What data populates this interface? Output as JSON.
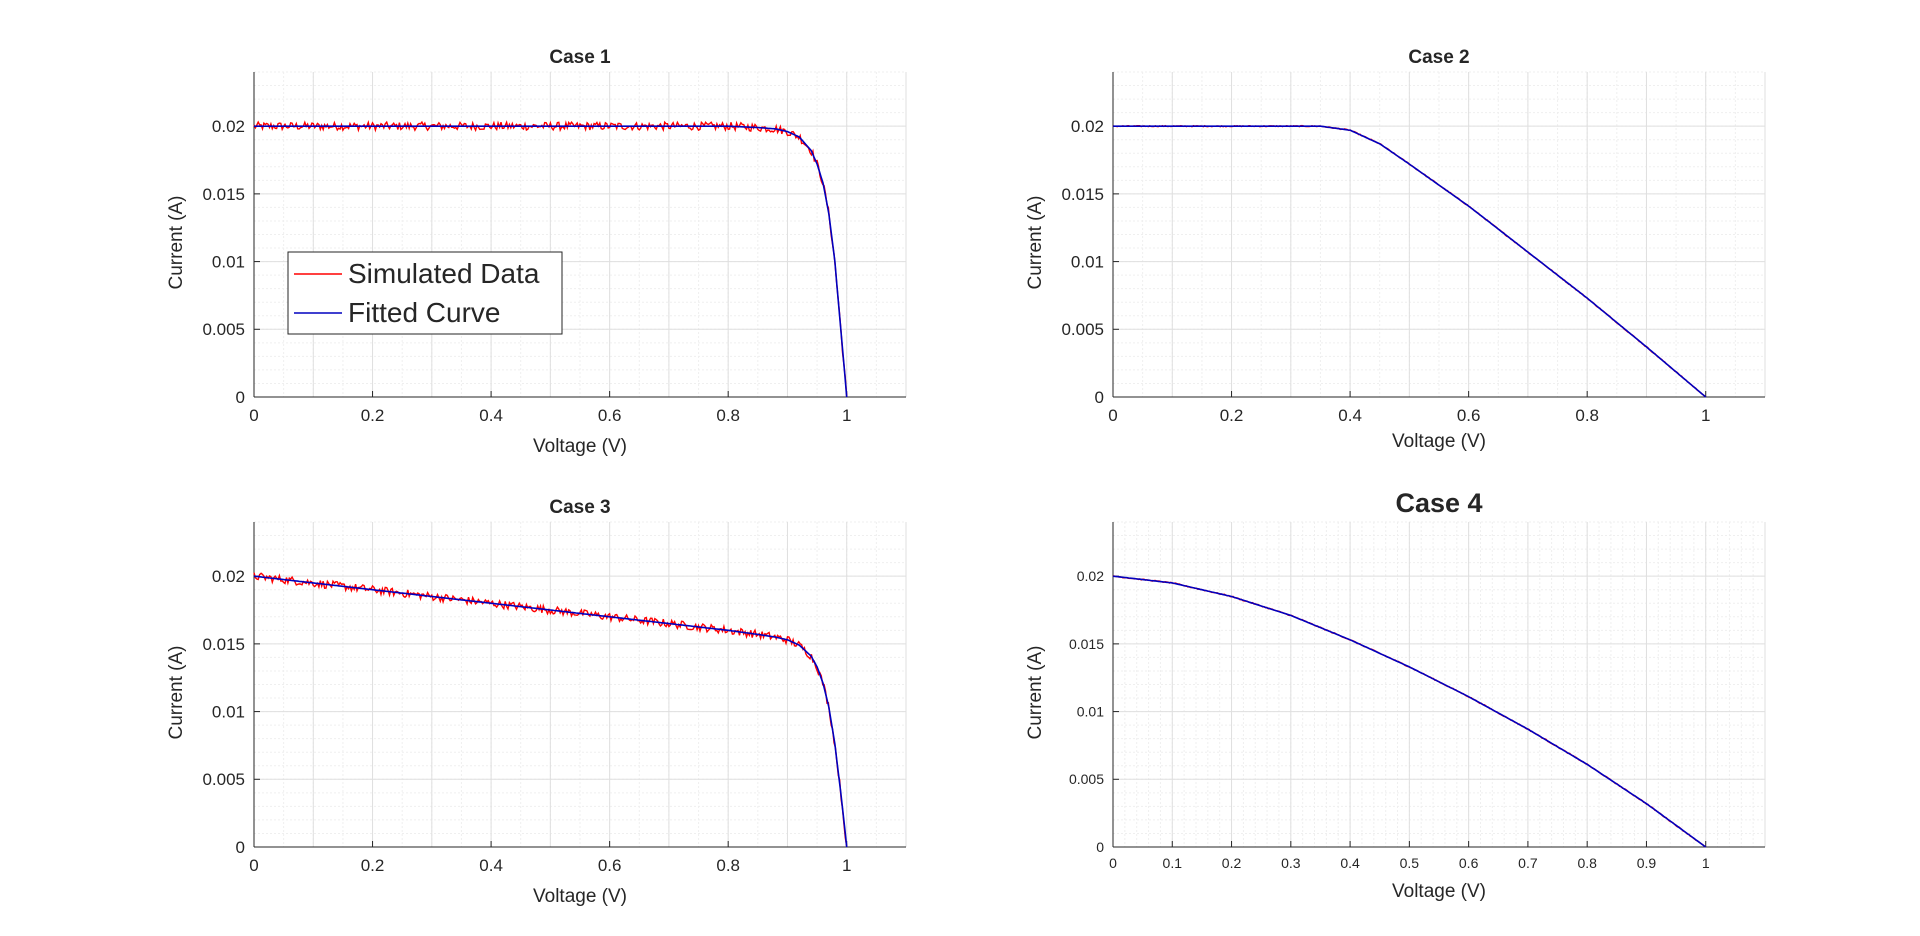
{
  "colors": {
    "simulated": "#ff0000",
    "fitted": "#0000bf",
    "axis": "#262626",
    "grid_major": "#dfdfdf",
    "grid_minor": "#efefef"
  },
  "legend": {
    "simulated_label": "Simulated Data",
    "fitted_label": "Fitted Curve",
    "placement": "inside-left (Case 1 only)"
  },
  "chart_data": [
    {
      "type": "line",
      "title": "Case 1",
      "xlabel": "Voltage (V)",
      "ylabel": "Current (A)",
      "xlim": [
        0,
        1.1
      ],
      "ylim": [
        0,
        0.024
      ],
      "xticks": [
        0,
        0.2,
        0.4,
        0.6,
        0.8,
        1
      ],
      "xtick_labels": [
        "0",
        "0.2",
        "0.4",
        "0.6",
        "0.8",
        "1"
      ],
      "yticks": [
        0,
        0.005,
        0.01,
        0.015,
        0.02
      ],
      "ytick_labels": [
        "0",
        "0.005",
        "0.01",
        "0.015",
        "0.02"
      ],
      "grid": "major and minor",
      "show_legend": true,
      "series": [
        {
          "name": "Simulated Data",
          "noise": 0.0003,
          "x": [
            0,
            0.1,
            0.2,
            0.3,
            0.4,
            0.5,
            0.6,
            0.7,
            0.8,
            0.85,
            0.88,
            0.9,
            0.92,
            0.94,
            0.95,
            0.96,
            0.97,
            0.98,
            0.99,
            1.0
          ],
          "y": [
            0.02,
            0.02,
            0.02,
            0.02,
            0.02,
            0.02,
            0.02,
            0.02,
            0.02,
            0.0199,
            0.0198,
            0.0196,
            0.0192,
            0.0182,
            0.0172,
            0.0158,
            0.0135,
            0.01,
            0.005,
            0
          ]
        },
        {
          "name": "Fitted Curve",
          "x": [
            0,
            0.1,
            0.2,
            0.3,
            0.4,
            0.5,
            0.6,
            0.7,
            0.8,
            0.85,
            0.88,
            0.9,
            0.92,
            0.94,
            0.95,
            0.96,
            0.97,
            0.98,
            0.99,
            1.0
          ],
          "y": [
            0.02,
            0.02,
            0.02,
            0.02,
            0.02,
            0.02,
            0.02,
            0.02,
            0.02,
            0.0199,
            0.0198,
            0.0196,
            0.0192,
            0.0182,
            0.0172,
            0.0158,
            0.0135,
            0.01,
            0.005,
            0
          ]
        }
      ]
    },
    {
      "type": "line",
      "title": "Case 2",
      "xlabel": "Voltage (V)",
      "ylabel": "Current (A)",
      "xlim": [
        0,
        1.1
      ],
      "ylim": [
        0,
        0.024
      ],
      "xticks": [
        0,
        0.2,
        0.4,
        0.6,
        0.8,
        1
      ],
      "xtick_labels": [
        "0",
        "0.2",
        "0.4",
        "0.6",
        "0.8",
        "1"
      ],
      "yticks": [
        0,
        0.005,
        0.01,
        0.015,
        0.02
      ],
      "ytick_labels": [
        "0",
        "0.005",
        "0.01",
        "0.015",
        "0.02"
      ],
      "grid": "major and minor",
      "show_legend": false,
      "series": [
        {
          "name": "Simulated Data",
          "noise": 4e-05,
          "x": [
            0,
            0.1,
            0.2,
            0.3,
            0.35,
            0.4,
            0.45,
            0.5,
            0.6,
            0.7,
            0.8,
            0.9,
            1.0
          ],
          "y": [
            0.02,
            0.02,
            0.02,
            0.02,
            0.02,
            0.0197,
            0.0187,
            0.0172,
            0.0141,
            0.0107,
            0.0073,
            0.0037,
            0
          ]
        },
        {
          "name": "Fitted Curve",
          "x": [
            0,
            0.1,
            0.2,
            0.3,
            0.35,
            0.4,
            0.45,
            0.5,
            0.6,
            0.7,
            0.8,
            0.9,
            1.0
          ],
          "y": [
            0.02,
            0.02,
            0.02,
            0.02,
            0.02,
            0.0197,
            0.0187,
            0.0172,
            0.0141,
            0.0107,
            0.0073,
            0.0037,
            0
          ]
        }
      ]
    },
    {
      "type": "line",
      "title": "Case 3",
      "xlabel": "Voltage (V)",
      "ylabel": "Current (A)",
      "xlim": [
        0,
        1.1
      ],
      "ylim": [
        0,
        0.024
      ],
      "xticks": [
        0,
        0.2,
        0.4,
        0.6,
        0.8,
        1
      ],
      "xtick_labels": [
        "0",
        "0.2",
        "0.4",
        "0.6",
        "0.8",
        "1"
      ],
      "yticks": [
        0,
        0.005,
        0.01,
        0.015,
        0.02
      ],
      "ytick_labels": [
        "0",
        "0.005",
        "0.01",
        "0.015",
        "0.02"
      ],
      "grid": "major and minor",
      "show_legend": false,
      "series": [
        {
          "name": "Simulated Data",
          "noise": 0.0003,
          "x": [
            0,
            0.1,
            0.2,
            0.3,
            0.4,
            0.5,
            0.6,
            0.7,
            0.8,
            0.85,
            0.88,
            0.9,
            0.92,
            0.94,
            0.95,
            0.96,
            0.97,
            0.98,
            0.99,
            1.0
          ],
          "y": [
            0.02,
            0.0195,
            0.019,
            0.0185,
            0.018,
            0.0175,
            0.017,
            0.0165,
            0.016,
            0.0157,
            0.0155,
            0.0153,
            0.0149,
            0.0141,
            0.0133,
            0.0121,
            0.0103,
            0.0076,
            0.004,
            0
          ]
        },
        {
          "name": "Fitted Curve",
          "x": [
            0,
            0.1,
            0.2,
            0.3,
            0.4,
            0.5,
            0.6,
            0.7,
            0.8,
            0.85,
            0.88,
            0.9,
            0.92,
            0.94,
            0.95,
            0.96,
            0.97,
            0.98,
            0.99,
            1.0
          ],
          "y": [
            0.02,
            0.0195,
            0.019,
            0.0185,
            0.018,
            0.0175,
            0.017,
            0.0165,
            0.016,
            0.0157,
            0.0155,
            0.0153,
            0.0149,
            0.0141,
            0.0133,
            0.0121,
            0.0103,
            0.0076,
            0.004,
            0
          ]
        }
      ]
    },
    {
      "type": "line",
      "title": "Case 4",
      "xlabel": "Voltage (V)",
      "ylabel": "Current (A)",
      "xlim": [
        0,
        1.1
      ],
      "ylim": [
        0,
        0.024
      ],
      "xticks": [
        0,
        0.1,
        0.2,
        0.3,
        0.4,
        0.5,
        0.6,
        0.7,
        0.8,
        0.9,
        1
      ],
      "xtick_labels": [
        "0",
        "0.1",
        "0.2",
        "0.3",
        "0.4",
        "0.5",
        "0.6",
        "0.7",
        "0.8",
        "0.9",
        "1"
      ],
      "yticks": [
        0,
        0.005,
        0.01,
        0.015,
        0.02
      ],
      "ytick_labels": [
        "0",
        "0.005",
        "0.01",
        "0.015",
        "0.02"
      ],
      "grid": "major and minor",
      "show_legend": false,
      "series": [
        {
          "name": "Simulated Data",
          "noise": 4e-05,
          "x": [
            0,
            0.1,
            0.2,
            0.3,
            0.4,
            0.5,
            0.6,
            0.7,
            0.8,
            0.9,
            1.0
          ],
          "y": [
            0.02,
            0.0195,
            0.0185,
            0.0171,
            0.0153,
            0.0133,
            0.0111,
            0.0087,
            0.0061,
            0.0032,
            0
          ]
        },
        {
          "name": "Fitted Curve",
          "x": [
            0,
            0.1,
            0.2,
            0.3,
            0.4,
            0.5,
            0.6,
            0.7,
            0.8,
            0.9,
            1.0
          ],
          "y": [
            0.02,
            0.0195,
            0.0185,
            0.0171,
            0.0153,
            0.0133,
            0.0111,
            0.0087,
            0.0061,
            0.0032,
            0
          ]
        }
      ]
    }
  ]
}
